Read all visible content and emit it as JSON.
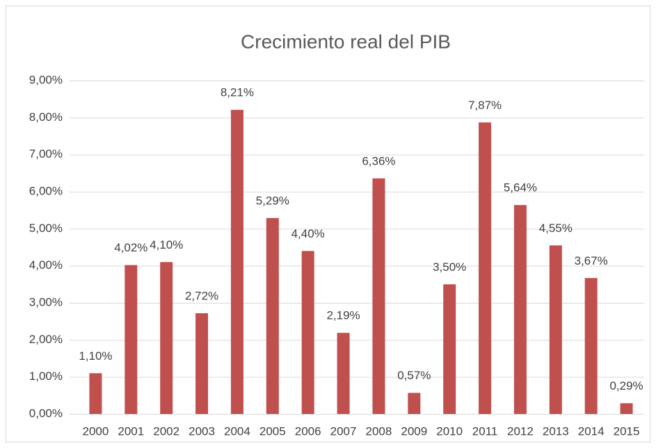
{
  "chart_data": {
    "type": "bar",
    "title": "Crecimiento real del PIB",
    "categories": [
      "2000",
      "2001",
      "2002",
      "2003",
      "2004",
      "2005",
      "2006",
      "2007",
      "2008",
      "2009",
      "2010",
      "2011",
      "2012",
      "2013",
      "2014",
      "2015"
    ],
    "values": [
      1.1,
      4.02,
      4.1,
      2.72,
      8.21,
      5.29,
      4.4,
      2.19,
      6.36,
      0.57,
      3.5,
      7.87,
      5.64,
      4.55,
      3.67,
      0.29
    ],
    "value_labels": [
      "1,10%",
      "4,02%",
      "4,10%",
      "2,72%",
      "8,21%",
      "5,29%",
      "4,40%",
      "2,19%",
      "6,36%",
      "0,57%",
      "3,50%",
      "7,87%",
      "5,64%",
      "4,55%",
      "3,67%",
      "0,29%"
    ],
    "color": "#c0504d",
    "ylim": [
      0,
      9
    ],
    "yticks": [
      {
        "value": 0,
        "label": "0,00%"
      },
      {
        "value": 1,
        "label": "1,00%"
      },
      {
        "value": 2,
        "label": "2,00%"
      },
      {
        "value": 3,
        "label": "3,00%"
      },
      {
        "value": 4,
        "label": "4,00%"
      },
      {
        "value": 5,
        "label": "5,00%"
      },
      {
        "value": 6,
        "label": "6,00%"
      },
      {
        "value": 7,
        "label": "7,00%"
      },
      {
        "value": 8,
        "label": "8,00%"
      },
      {
        "value": 9,
        "label": "9,00%"
      }
    ],
    "grid": true
  }
}
